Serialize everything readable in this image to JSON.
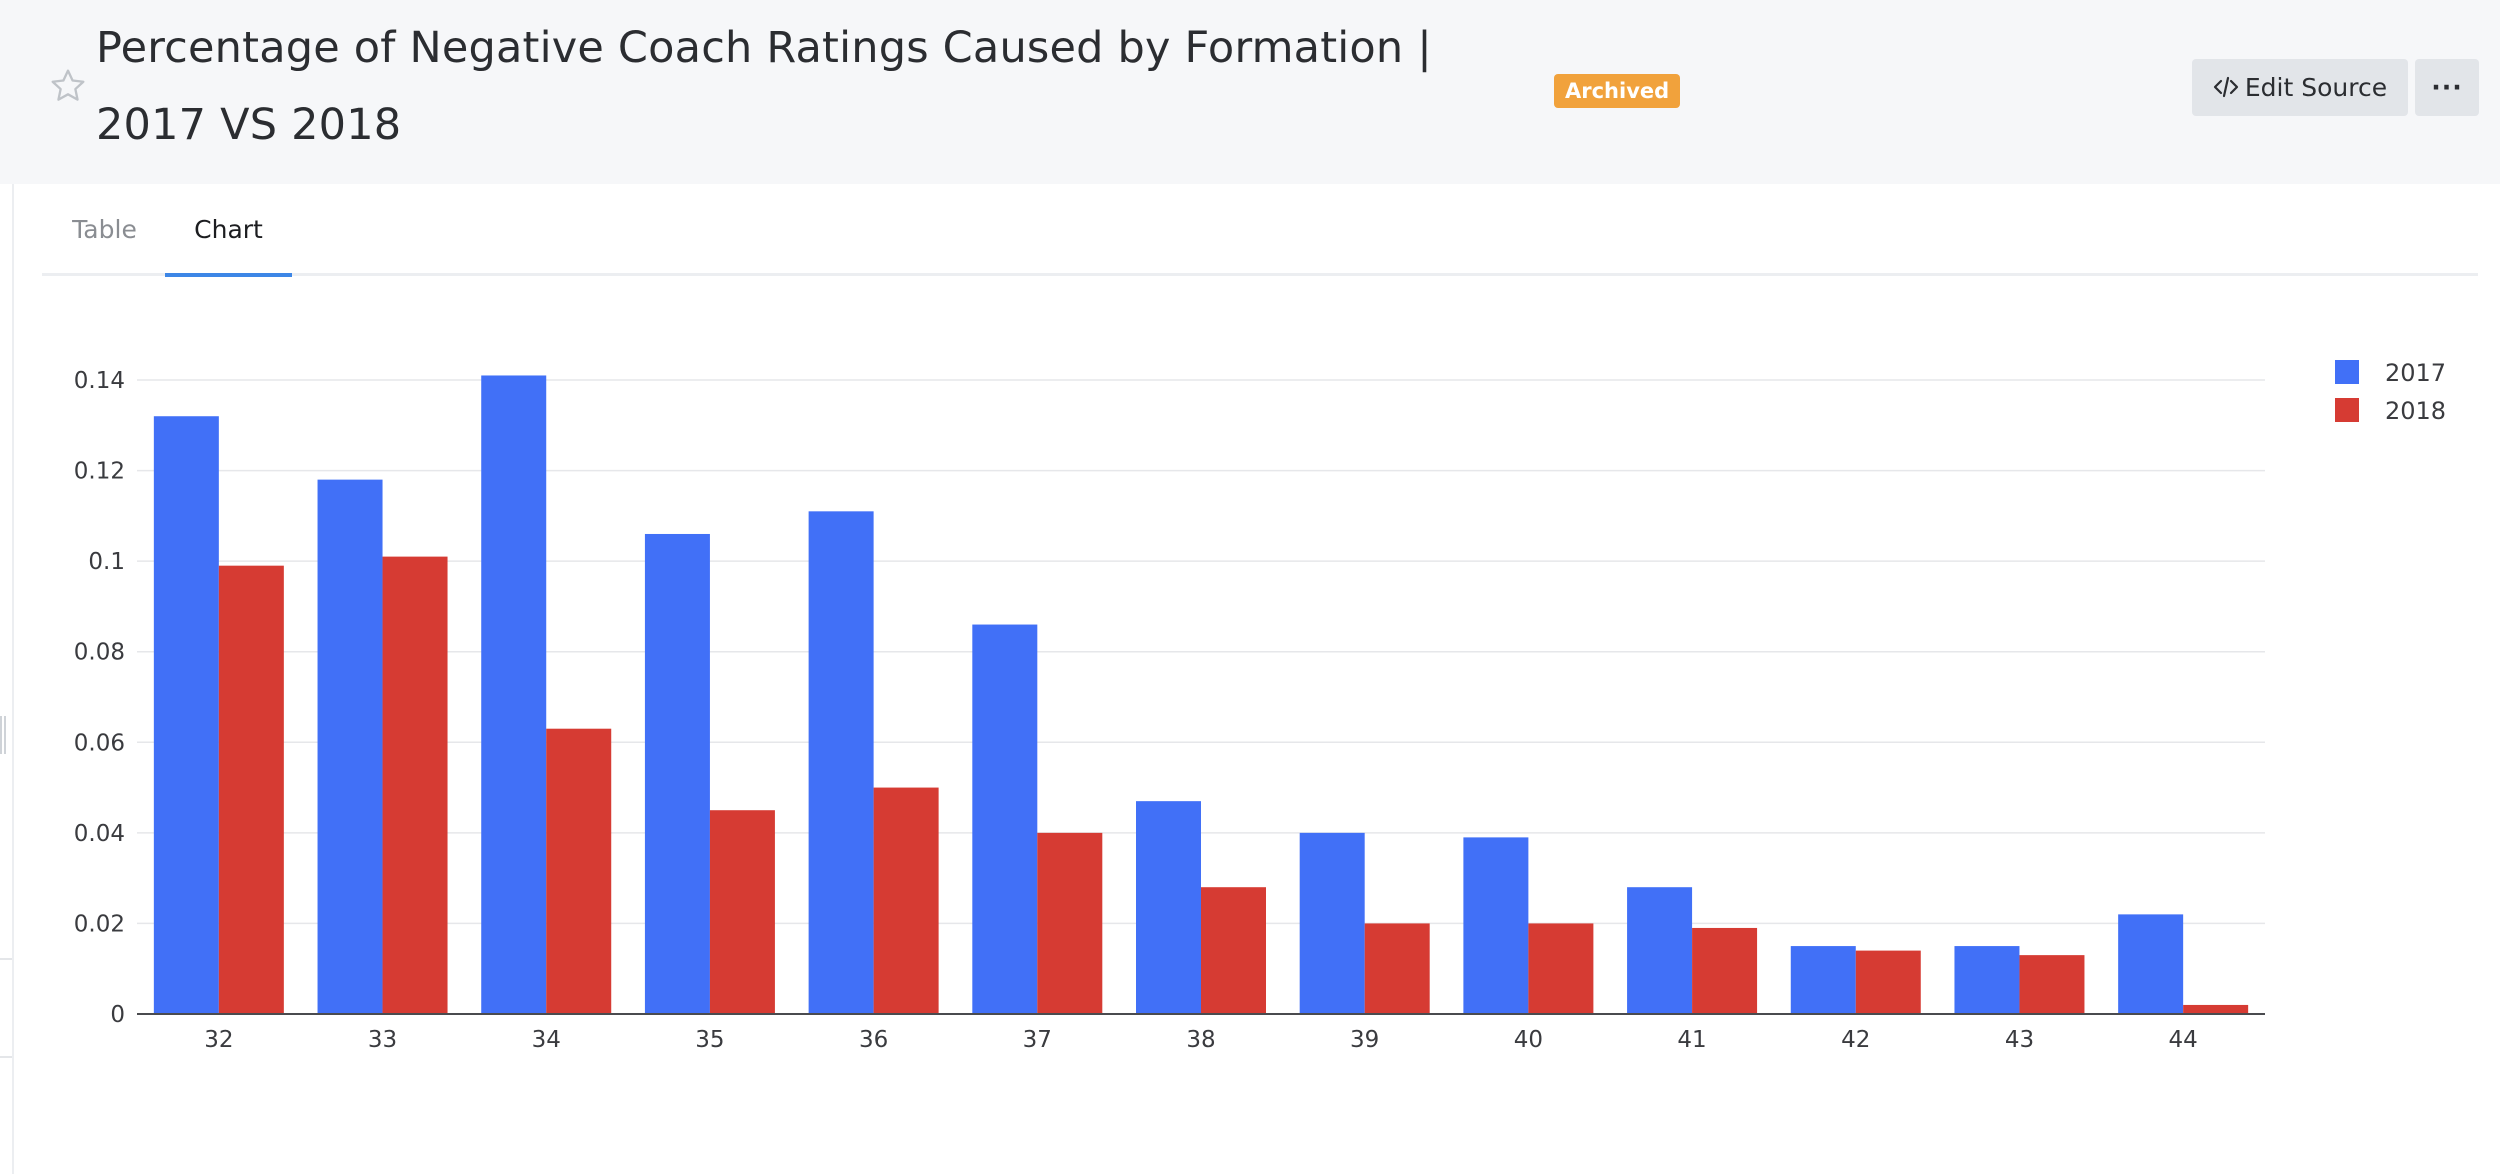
{
  "header": {
    "title": "Percentage of Negative Coach Ratings Caused by Formation | 2017 VS 2018",
    "status_badge": "Archived",
    "edit_source_label": "Edit Source",
    "more_label": "···"
  },
  "tabs": [
    {
      "label": "Table",
      "active": false
    },
    {
      "label": "Chart",
      "active": true
    }
  ],
  "colors": {
    "series_2017": "#4170f7",
    "series_2018": "#d63b33",
    "badge": "#f1a23c",
    "active_tab_underline": "#3d86e6"
  },
  "chart_data": {
    "type": "bar",
    "categories": [
      "32",
      "33",
      "34",
      "35",
      "36",
      "37",
      "38",
      "39",
      "40",
      "41",
      "42",
      "43",
      "44"
    ],
    "series": [
      {
        "name": "2017",
        "values": [
          0.132,
          0.118,
          0.141,
          0.106,
          0.111,
          0.086,
          0.047,
          0.04,
          0.039,
          0.028,
          0.015,
          0.015,
          0.022
        ]
      },
      {
        "name": "2018",
        "values": [
          0.099,
          0.101,
          0.063,
          0.045,
          0.05,
          0.04,
          0.028,
          0.02,
          0.02,
          0.019,
          0.014,
          0.013,
          0.002
        ]
      }
    ],
    "y_ticks": [
      "0",
      "0.02",
      "0.04",
      "0.06",
      "0.08",
      "0.1",
      "0.12",
      "0.14"
    ],
    "ylim": [
      0,
      0.14
    ],
    "grid": true,
    "legend_position": "top-right",
    "title": "",
    "xlabel": "",
    "ylabel": ""
  }
}
